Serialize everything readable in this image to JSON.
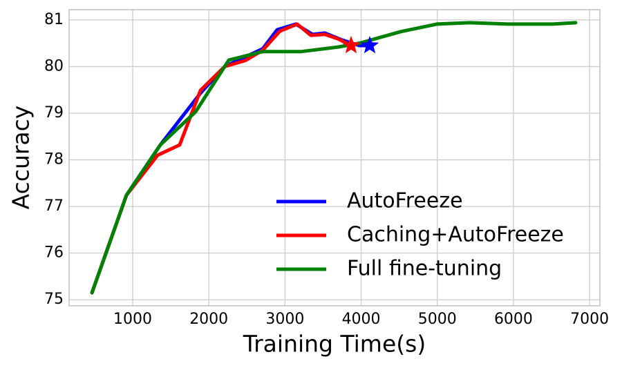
{
  "chart_data": {
    "type": "line",
    "xlabel": "Training Time(s)",
    "ylabel": "Accuracy",
    "xlim": [
      165,
      7135
    ],
    "ylim": [
      74.87,
      81.22
    ],
    "xticks": [
      1000,
      2000,
      3000,
      4000,
      5000,
      6000,
      7000
    ],
    "yticks": [
      75,
      76,
      77,
      78,
      79,
      80,
      81
    ],
    "grid": true,
    "legend": "lower right",
    "series": [
      {
        "name": "AutoFreeze",
        "color": "#0000ff",
        "end_marker": "star",
        "x": [
          465,
          917,
          1363,
          1890,
          2208,
          2707,
          2897,
          3142,
          3360,
          3523,
          3750,
          3976,
          4113
        ],
        "values": [
          75.15,
          77.24,
          78.32,
          79.43,
          80.0,
          80.38,
          80.79,
          80.91,
          80.69,
          80.72,
          80.57,
          80.45,
          80.45
        ]
      },
      {
        "name": "Caching+AutoFreeze",
        "color": "#ff0000",
        "end_marker": "star",
        "x": [
          465,
          917,
          1328,
          1617,
          1890,
          2208,
          2480,
          2707,
          2933,
          3160,
          3340,
          3523,
          3704,
          3868
        ],
        "values": [
          75.15,
          77.24,
          78.1,
          78.32,
          79.49,
          80.0,
          80.13,
          80.35,
          80.76,
          80.91,
          80.67,
          80.69,
          80.59,
          80.45
        ]
      },
      {
        "name": "Full fine-tuning",
        "color": "#008000",
        "x": [
          465,
          917,
          1363,
          1826,
          2262,
          2707,
          3207,
          3704,
          3976,
          4521,
          4993,
          5428,
          5927,
          6517,
          6816
        ],
        "values": [
          75.15,
          77.24,
          78.32,
          79.03,
          80.14,
          80.32,
          80.32,
          80.42,
          80.5,
          80.75,
          80.91,
          80.94,
          80.91,
          80.91,
          80.94
        ]
      }
    ]
  }
}
